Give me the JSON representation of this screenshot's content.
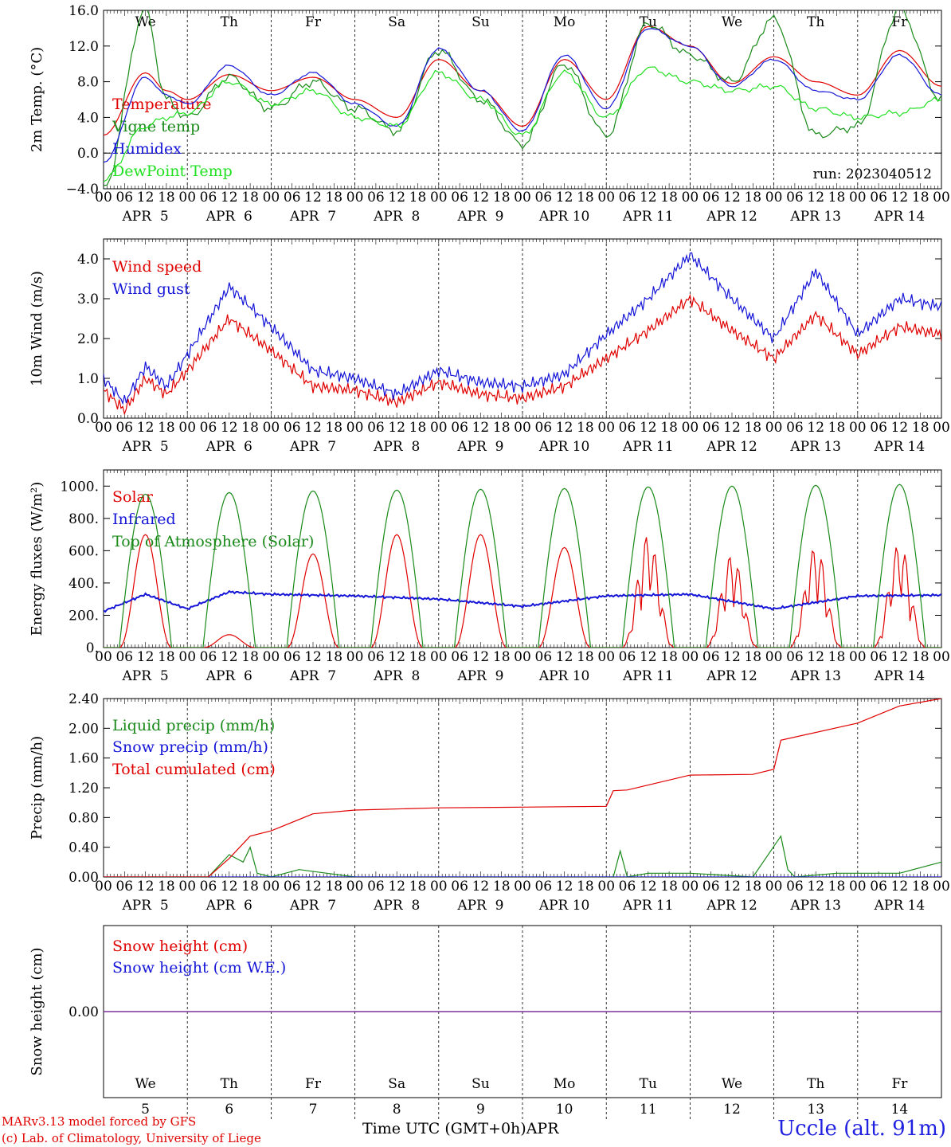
{
  "run_label": "run: 2023040512",
  "colors": {
    "red": "#e00000",
    "green": "#1a8a1a",
    "blue": "#1515d8",
    "lightgreen": "#22e022",
    "weekend": "#e00000",
    "purple": "#7a2a9a"
  },
  "days": [
    "We",
    "Th",
    "Fr",
    "Sa",
    "Su",
    "Mo",
    "Tu",
    "We",
    "Th",
    "Fr"
  ],
  "weekend_days": [
    "Sa",
    "Su"
  ],
  "dates": [
    "APR  5",
    "APR  6",
    "APR  7",
    "APR  8",
    "APR  9",
    "APR 10",
    "APR 11",
    "APR 12",
    "APR 13",
    "APR 14"
  ],
  "date_numbers": [
    "5",
    "6",
    "7",
    "8",
    "9",
    "10",
    "11",
    "12",
    "13",
    "14"
  ],
  "hour_ticks": [
    "00",
    "06",
    "12",
    "18"
  ],
  "footer": {
    "model": "MARv3.13 model forced by GFS",
    "credit": "(c) Lab. of Climatology, University of Liege",
    "time_axis": "Time UTC (GMT+0h)",
    "month": "APR",
    "station": "Uccle (alt. 91m)"
  },
  "chart_data": [
    {
      "type": "line",
      "ylabel": "2m Temp. (°C)",
      "ylim": [
        -4.0,
        16.0
      ],
      "yticks": [
        "-4.0",
        "0.0",
        "4.0",
        "8.0",
        "12.0",
        "16.0"
      ],
      "x_hours": [
        0,
        12,
        18,
        24,
        36,
        48,
        60,
        72,
        84,
        96,
        108,
        120,
        132,
        144,
        156,
        168,
        180,
        192,
        204,
        216,
        228,
        240
      ],
      "series": [
        {
          "name": "Temperature",
          "color": "#e00000",
          "values": [
            2,
            9,
            7,
            6,
            8.8,
            7,
            8.5,
            6,
            4,
            10.5,
            7,
            3,
            10.5,
            6,
            14.2,
            12,
            7.8,
            10.8,
            8,
            6.5,
            11.5,
            7.5
          ]
        },
        {
          "name": "Vigne temp",
          "color": "#1a8a1a",
          "values": [
            -4,
            16,
            6,
            4,
            8.5,
            5,
            8,
            5,
            2.5,
            11.5,
            6,
            1,
            10,
            2,
            14.5,
            11,
            8,
            15,
            2,
            3,
            16,
            6
          ]
        },
        {
          "name": "Humidex",
          "color": "#1515d8",
          "values": [
            -1,
            8.5,
            6.5,
            5.5,
            9.8,
            6.5,
            9,
            5.5,
            3,
            11.7,
            7,
            2.5,
            11,
            5,
            14,
            12,
            7.5,
            10.5,
            7,
            6,
            11,
            6.5
          ]
        },
        {
          "name": "DewPoint Temp",
          "color": "#22e022",
          "values": [
            -3,
            3,
            4,
            4.5,
            8,
            5.5,
            7,
            4,
            3,
            9,
            6,
            2,
            9,
            4,
            9.5,
            8,
            7,
            7.5,
            5,
            4,
            4.5,
            6
          ]
        }
      ]
    },
    {
      "type": "line",
      "ylabel": "10m Wind (m/s)",
      "ylim": [
        0,
        4.5
      ],
      "yticks": [
        "0.0",
        "1.0",
        "2.0",
        "3.0",
        "4.0"
      ],
      "x_hours": [
        0,
        6,
        12,
        18,
        24,
        36,
        48,
        60,
        72,
        84,
        96,
        108,
        120,
        132,
        144,
        156,
        168,
        180,
        192,
        204,
        216,
        228,
        240
      ],
      "series": [
        {
          "name": "Wind speed",
          "color": "#e00000",
          "values": [
            0.7,
            0.2,
            1.0,
            0.6,
            1.2,
            2.5,
            1.7,
            0.8,
            0.7,
            0.4,
            0.9,
            0.6,
            0.5,
            0.8,
            1.5,
            2.2,
            3.0,
            2.2,
            1.5,
            2.6,
            1.6,
            2.3,
            2.1
          ]
        },
        {
          "name": "Wind gust",
          "color": "#1515d8",
          "values": [
            1.0,
            0.4,
            1.3,
            0.8,
            1.6,
            3.3,
            2.3,
            1.2,
            1.0,
            0.6,
            1.2,
            0.9,
            0.8,
            1.1,
            2.1,
            3.0,
            4.1,
            3.0,
            2.0,
            3.7,
            2.1,
            3.0,
            2.8
          ]
        }
      ]
    },
    {
      "type": "line",
      "ylabel": "Energy fluxes (W/m²)",
      "ylim": [
        0,
        1100
      ],
      "yticks": [
        "0.",
        "200.",
        "400.",
        "600.",
        "800.",
        "1000."
      ],
      "solar_peaks": [
        700,
        80,
        580,
        700,
        700,
        620,
        700,
        580,
        630,
        650
      ],
      "toa_peaks": [
        950,
        960,
        970,
        975,
        980,
        985,
        995,
        1000,
        1005,
        1010
      ],
      "series": [
        {
          "name": "Solar",
          "color": "#e00000"
        },
        {
          "name": "Infrared",
          "color": "#1515d8",
          "x_hours": [
            0,
            12,
            24,
            36,
            48,
            72,
            96,
            120,
            144,
            168,
            192,
            216,
            240
          ],
          "values": [
            225,
            330,
            240,
            345,
            330,
            320,
            300,
            255,
            320,
            330,
            240,
            320,
            325
          ]
        },
        {
          "name": "Top of Atmosphere (Solar)",
          "color": "#1a8a1a"
        }
      ]
    },
    {
      "type": "line",
      "ylabel": "Precip (mm/h)",
      "ylim": [
        0,
        2.4
      ],
      "yticks": [
        "0.00",
        "0.40",
        "0.80",
        "1.20",
        "1.60",
        "2.00",
        "2.40"
      ],
      "series": [
        {
          "name": "Liquid precip (mm/h)",
          "color": "#1a8a1a",
          "x_hours": [
            0,
            30,
            36,
            40,
            42,
            44,
            48,
            56,
            72,
            120,
            146,
            148,
            150,
            156,
            168,
            186,
            194,
            196,
            198,
            210,
            220,
            228,
            240
          ],
          "values": [
            0,
            0,
            0.3,
            0.2,
            0.4,
            0.05,
            0,
            0.1,
            0,
            0,
            0,
            0.35,
            0,
            0.05,
            0.05,
            0,
            0.55,
            0.1,
            0,
            0.05,
            0.05,
            0.05,
            0.2
          ]
        },
        {
          "name": "Snow precip (mm/h)",
          "color": "#1515d8",
          "x_hours": [
            0,
            240
          ],
          "values": [
            0,
            0
          ]
        },
        {
          "name": "Total cumulated (cm)",
          "color": "#e00000",
          "x_hours": [
            0,
            30,
            36,
            42,
            48,
            60,
            72,
            96,
            120,
            144,
            146,
            150,
            168,
            186,
            192,
            194,
            216,
            228,
            240
          ],
          "values": [
            0,
            0,
            0.25,
            0.55,
            0.62,
            0.85,
            0.9,
            0.93,
            0.94,
            0.95,
            1.16,
            1.17,
            1.37,
            1.38,
            1.45,
            1.84,
            2.07,
            2.3,
            2.4
          ]
        }
      ]
    },
    {
      "type": "line",
      "ylabel": "Snow height (cm)",
      "ylim": [
        -1,
        1
      ],
      "yticks": [
        "0.00"
      ],
      "series": [
        {
          "name": "Snow height (cm)",
          "color": "#e00000",
          "x_hours": [
            0,
            240
          ],
          "values": [
            0,
            0
          ]
        },
        {
          "name": "Snow height (cm W.E.)",
          "color": "#1515d8",
          "x_hours": [
            0,
            240
          ],
          "values": [
            0,
            0
          ]
        }
      ]
    }
  ]
}
